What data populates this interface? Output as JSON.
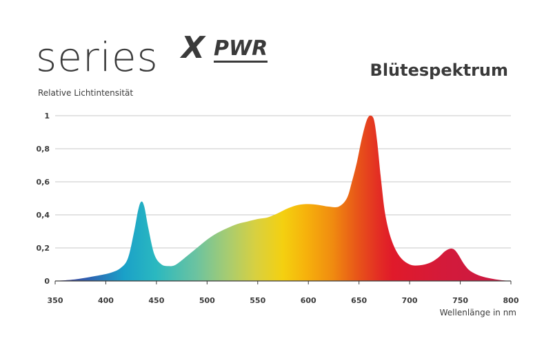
{
  "logo": {
    "series": "series",
    "x": "X",
    "pwr": "PWR"
  },
  "chart_data": {
    "type": "area",
    "title": "Blütespektrum",
    "xlabel": "Wellenlänge in nm",
    "ylabel": "Relative Lichtintensität",
    "xlim": [
      350,
      800
    ],
    "ylim": [
      0,
      1
    ],
    "x_ticks": [
      350,
      400,
      450,
      500,
      550,
      600,
      650,
      700,
      750,
      800
    ],
    "x_tick_labels": [
      "350",
      "400",
      "450",
      "500",
      "550",
      "600",
      "650",
      "700",
      "750",
      "800"
    ],
    "y_ticks": [
      0,
      0.2,
      0.4,
      0.6,
      0.8,
      1
    ],
    "y_tick_labels": [
      "0",
      "0,2",
      "0,4",
      "0,6",
      "0,8",
      "1"
    ],
    "grid": true,
    "series": [
      {
        "x": [
          350,
          370,
          390,
          405,
          415,
          422,
          428,
          432,
          435,
          438,
          442,
          448,
          455,
          462,
          468,
          474,
          480,
          490,
          500,
          510,
          520,
          530,
          540,
          550,
          560,
          570,
          580,
          590,
          600,
          610,
          620,
          630,
          638,
          643,
          648,
          652,
          656,
          659,
          662,
          665,
          668,
          672,
          676,
          682,
          690,
          700,
          710,
          720,
          728,
          735,
          740,
          744,
          748,
          754,
          760,
          770,
          780,
          790,
          800
        ],
        "values": [
          0.0,
          0.01,
          0.03,
          0.05,
          0.08,
          0.14,
          0.3,
          0.43,
          0.48,
          0.45,
          0.32,
          0.16,
          0.1,
          0.09,
          0.095,
          0.12,
          0.15,
          0.2,
          0.25,
          0.29,
          0.32,
          0.345,
          0.36,
          0.375,
          0.385,
          0.41,
          0.44,
          0.46,
          0.465,
          0.46,
          0.45,
          0.45,
          0.5,
          0.6,
          0.72,
          0.84,
          0.94,
          0.99,
          1.0,
          0.97,
          0.84,
          0.6,
          0.4,
          0.25,
          0.15,
          0.1,
          0.095,
          0.11,
          0.14,
          0.18,
          0.195,
          0.19,
          0.16,
          0.1,
          0.06,
          0.03,
          0.015,
          0.005,
          0.0
        ]
      }
    ]
  }
}
